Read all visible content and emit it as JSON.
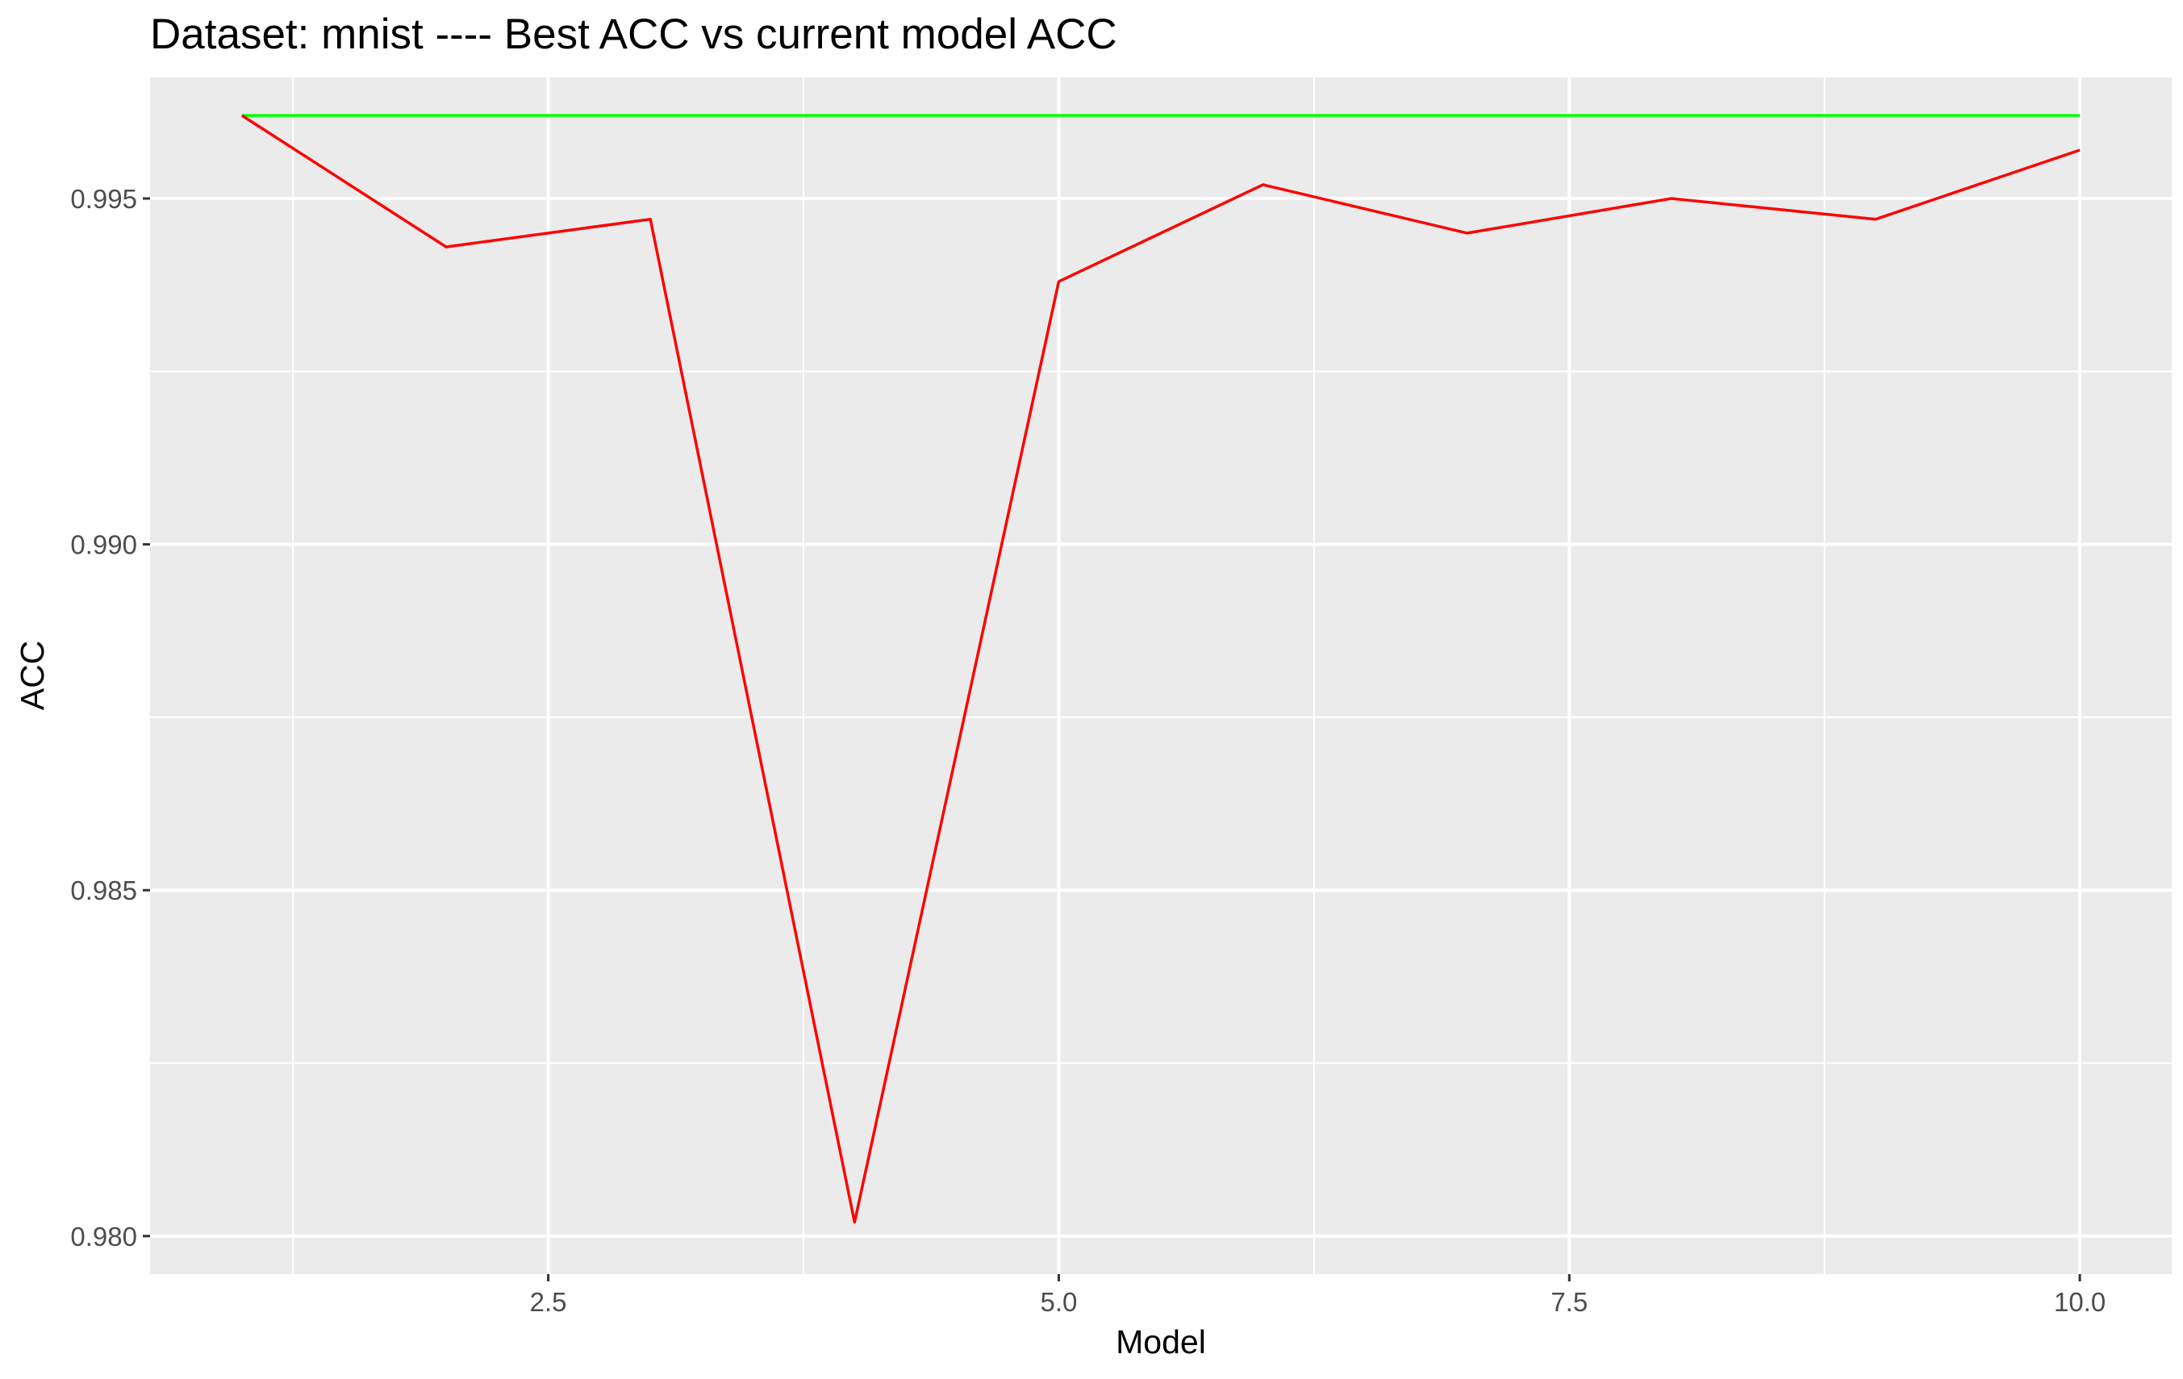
{
  "chart_data": {
    "type": "line",
    "title": "Dataset:  mnist  ---- Best ACC vs current model ACC",
    "xlabel": "Model",
    "ylabel": "ACC",
    "xlim": [
      0.55,
      10.45
    ],
    "ylim": [
      0.97945,
      0.99675
    ],
    "x_ticks": [
      2.5,
      5.0,
      7.5,
      10.0
    ],
    "x_tick_labels": [
      "2.5",
      "5.0",
      "7.5",
      "10.0"
    ],
    "x_minor_ticks": [
      1.25,
      3.75,
      6.25,
      8.75
    ],
    "y_ticks": [
      0.98,
      0.985,
      0.99,
      0.995
    ],
    "y_tick_labels": [
      "0.980",
      "0.985",
      "0.990",
      "0.995"
    ],
    "y_minor_ticks": [
      0.9825,
      0.9875,
      0.9925
    ],
    "grid": true,
    "legend": "none",
    "background": "#ebebeb",
    "grid_color": "#ffffff",
    "series": [
      {
        "color": "#00ff00",
        "x": [
          1,
          2,
          3,
          4,
          5,
          6,
          7,
          8,
          9,
          10
        ],
        "y": [
          0.9962,
          0.9962,
          0.9962,
          0.9962,
          0.9962,
          0.9962,
          0.9962,
          0.9962,
          0.9962,
          0.9962
        ]
      },
      {
        "color": "#ff0000",
        "x": [
          1,
          2,
          3,
          4,
          5,
          6,
          7,
          8,
          9,
          10
        ],
        "y": [
          0.9962,
          0.9943,
          0.9947,
          0.9802,
          0.9938,
          0.9952,
          0.9945,
          0.995,
          0.9947,
          0.9957
        ]
      }
    ]
  }
}
